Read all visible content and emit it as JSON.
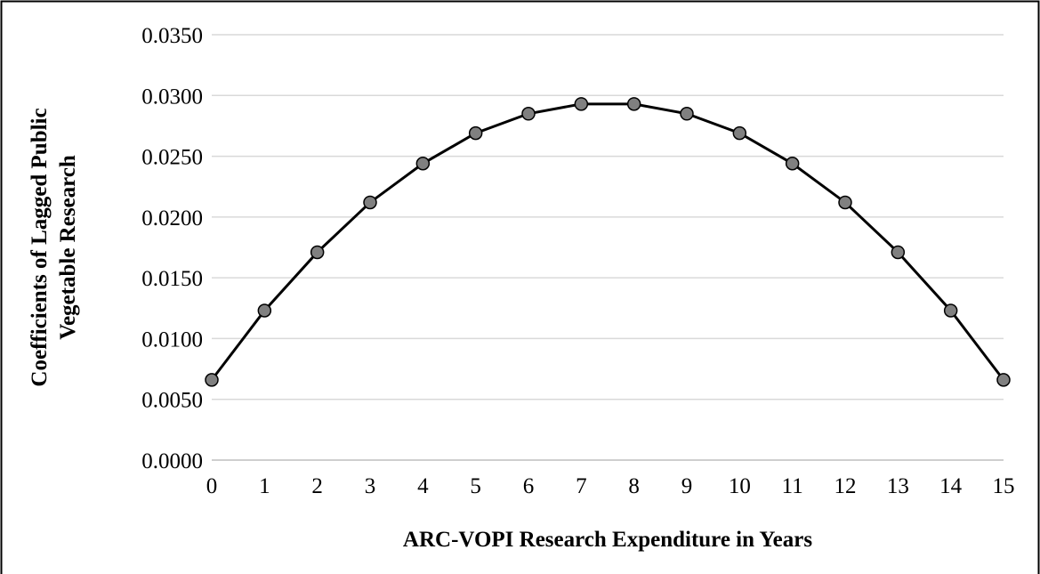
{
  "chart_data": {
    "type": "line",
    "xlabel": "ARC-VOPI Research Expenditure in Years",
    "ylabel": [
      "Coefficients of Lagged Public",
      "Vegetable Research"
    ],
    "x": [
      0,
      1,
      2,
      3,
      4,
      5,
      6,
      7,
      8,
      9,
      10,
      11,
      12,
      13,
      14,
      15
    ],
    "series": [
      {
        "color": "#000000",
        "marker_color": "#808080",
        "values": [
          0.0066,
          0.0123,
          0.0171,
          0.0212,
          0.0244,
          0.0269,
          0.0285,
          0.0293,
          0.0293,
          0.0285,
          0.0269,
          0.0244,
          0.0212,
          0.0171,
          0.0123,
          0.0066
        ]
      }
    ],
    "xlim": [
      0,
      15
    ],
    "xticks": [
      0,
      1,
      2,
      3,
      4,
      5,
      6,
      7,
      8,
      9,
      10,
      11,
      12,
      13,
      14,
      15
    ],
    "ylim": [
      0,
      0.035
    ],
    "yticks": [
      {
        "value": 0,
        "label": "0.0000"
      },
      {
        "value": 0.005,
        "label": "0.0050"
      },
      {
        "value": 0.01,
        "label": "0.0100"
      },
      {
        "value": 0.015,
        "label": "0.0150"
      },
      {
        "value": 0.02,
        "label": "0.0200"
      },
      {
        "value": 0.025,
        "label": "0.0250"
      },
      {
        "value": 0.03,
        "label": "0.0300"
      },
      {
        "value": 0.035,
        "label": "0.0350"
      }
    ],
    "grid": true
  }
}
